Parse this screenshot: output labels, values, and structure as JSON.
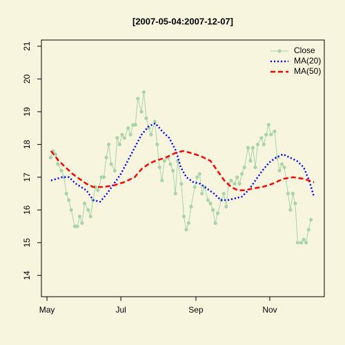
{
  "chart_data": {
    "type": "line",
    "title": "[2007-05-04:2007-12-07]",
    "background": "#f7f5de",
    "xlim": [
      116.4,
      350
    ],
    "xticks": [
      {
        "value": 121,
        "label": "May"
      },
      {
        "value": 182,
        "label": "Jul"
      },
      {
        "value": 244,
        "label": "Sep"
      },
      {
        "value": 305,
        "label": "Nov"
      }
    ],
    "ylim": [
      13.35,
      21.19
    ],
    "yticks": [
      14,
      15,
      16,
      17,
      18,
      19,
      20,
      21
    ],
    "legend": "top-right",
    "series": [
      {
        "name": "Close",
        "color": "#a8d4a8",
        "linestyle": "solid",
        "marker": true,
        "x": [
          124,
          126,
          128,
          130,
          133,
          135,
          137,
          139,
          141,
          144,
          146,
          148,
          150,
          152,
          155,
          157,
          159,
          161,
          163,
          166,
          168,
          170,
          172,
          174,
          177,
          179,
          181,
          183,
          185,
          188,
          190,
          192,
          194,
          196,
          199,
          201,
          203,
          205,
          207,
          210,
          212,
          214,
          216,
          218,
          221,
          223,
          225,
          227,
          229,
          232,
          234,
          236,
          238,
          240,
          243,
          245,
          247,
          249,
          251,
          254,
          256,
          258,
          260,
          262,
          265,
          267,
          269,
          271,
          273,
          276,
          278,
          280,
          282,
          284,
          287,
          289,
          291,
          293,
          295,
          298,
          300,
          302,
          304,
          306,
          309,
          311,
          313,
          315,
          317,
          320,
          322,
          324,
          326,
          328,
          331,
          333,
          335,
          337,
          339
        ],
        "values": [
          17.6,
          17.8,
          17.7,
          17.4,
          17.2,
          17.0,
          16.5,
          16.3,
          16.0,
          15.5,
          15.5,
          15.8,
          15.6,
          16.2,
          16.0,
          15.8,
          16.3,
          16.7,
          16.6,
          17.0,
          17.0,
          17.6,
          18.0,
          17.4,
          17.2,
          18.2,
          18.0,
          18.3,
          18.2,
          18.5,
          18.3,
          18.6,
          18.6,
          19.4,
          19.0,
          19.6,
          18.8,
          18.5,
          18.3,
          18.7,
          18.0,
          17.3,
          16.9,
          17.5,
          17.6,
          17.4,
          17.2,
          16.5,
          17.5,
          16.8,
          15.8,
          15.4,
          15.6,
          16.1,
          16.7,
          17.0,
          17.1,
          16.5,
          16.7,
          16.3,
          16.2,
          16.0,
          15.6,
          15.9,
          16.3,
          16.5,
          16.1,
          16.8,
          16.9,
          16.8,
          17.0,
          16.8,
          17.1,
          17.3,
          17.9,
          17.5,
          17.9,
          17.3,
          18.0,
          18.2,
          18.0,
          18.3,
          18.6,
          18.3,
          18.4,
          17.6,
          17.2,
          17.4,
          17.3,
          16.5,
          16.0,
          16.5,
          16.2,
          15.0,
          15.0,
          15.1,
          15.0,
          15.4,
          15.7
        ]
      },
      {
        "name": "MA(20)",
        "color": "#0000ff",
        "linestyle": "dotted",
        "marker": false,
        "x": [
          124.4,
          133.5,
          139.2,
          144.9,
          153.5,
          159.2,
          164.9,
          170.6,
          176.3,
          182.0,
          187.7,
          193.4,
          199.1,
          204.8,
          210.5,
          216.2,
          221.9,
          227.6,
          231.5,
          236.1,
          241.8,
          247.5,
          253.2,
          258.9,
          264.6,
          270.3,
          276.0,
          281.7,
          287.4,
          293.1,
          298.8,
          304.5,
          310.2,
          315.9,
          321.6,
          327.3,
          333.0,
          337.5,
          341.5
        ],
        "values": [
          16.9,
          17.0,
          17.0,
          16.8,
          16.6,
          16.3,
          16.25,
          16.5,
          16.8,
          17.1,
          17.5,
          17.9,
          18.3,
          18.55,
          18.65,
          18.4,
          18.2,
          17.8,
          17.3,
          17.0,
          16.85,
          16.8,
          16.65,
          16.5,
          16.3,
          16.3,
          16.35,
          16.4,
          16.6,
          16.9,
          17.2,
          17.45,
          17.6,
          17.7,
          17.6,
          17.5,
          17.3,
          16.9,
          16.4
        ]
      },
      {
        "name": "MA(50)",
        "color": "#ff0000",
        "linestyle": "dashed",
        "marker": false,
        "x": [
          124.4,
          130.7,
          136.4,
          142.1,
          147.8,
          153.5,
          159.2,
          167.7,
          176.3,
          184.8,
          193.4,
          199.1,
          204.8,
          210.5,
          219.0,
          227.6,
          233.2,
          238.9,
          247.5,
          256.0,
          261.7,
          267.4,
          273.1,
          278.8,
          284.5,
          290.2,
          298.8,
          307.3,
          315.9,
          324.4,
          333.0,
          341.5
        ],
        "values": [
          17.8,
          17.5,
          17.3,
          17.1,
          16.95,
          16.8,
          16.7,
          16.7,
          16.75,
          16.85,
          17.0,
          17.25,
          17.4,
          17.5,
          17.6,
          17.75,
          17.8,
          17.75,
          17.65,
          17.5,
          17.2,
          16.9,
          16.7,
          16.6,
          16.6,
          16.65,
          16.7,
          16.8,
          16.95,
          17.0,
          16.95,
          16.85
        ]
      }
    ]
  }
}
